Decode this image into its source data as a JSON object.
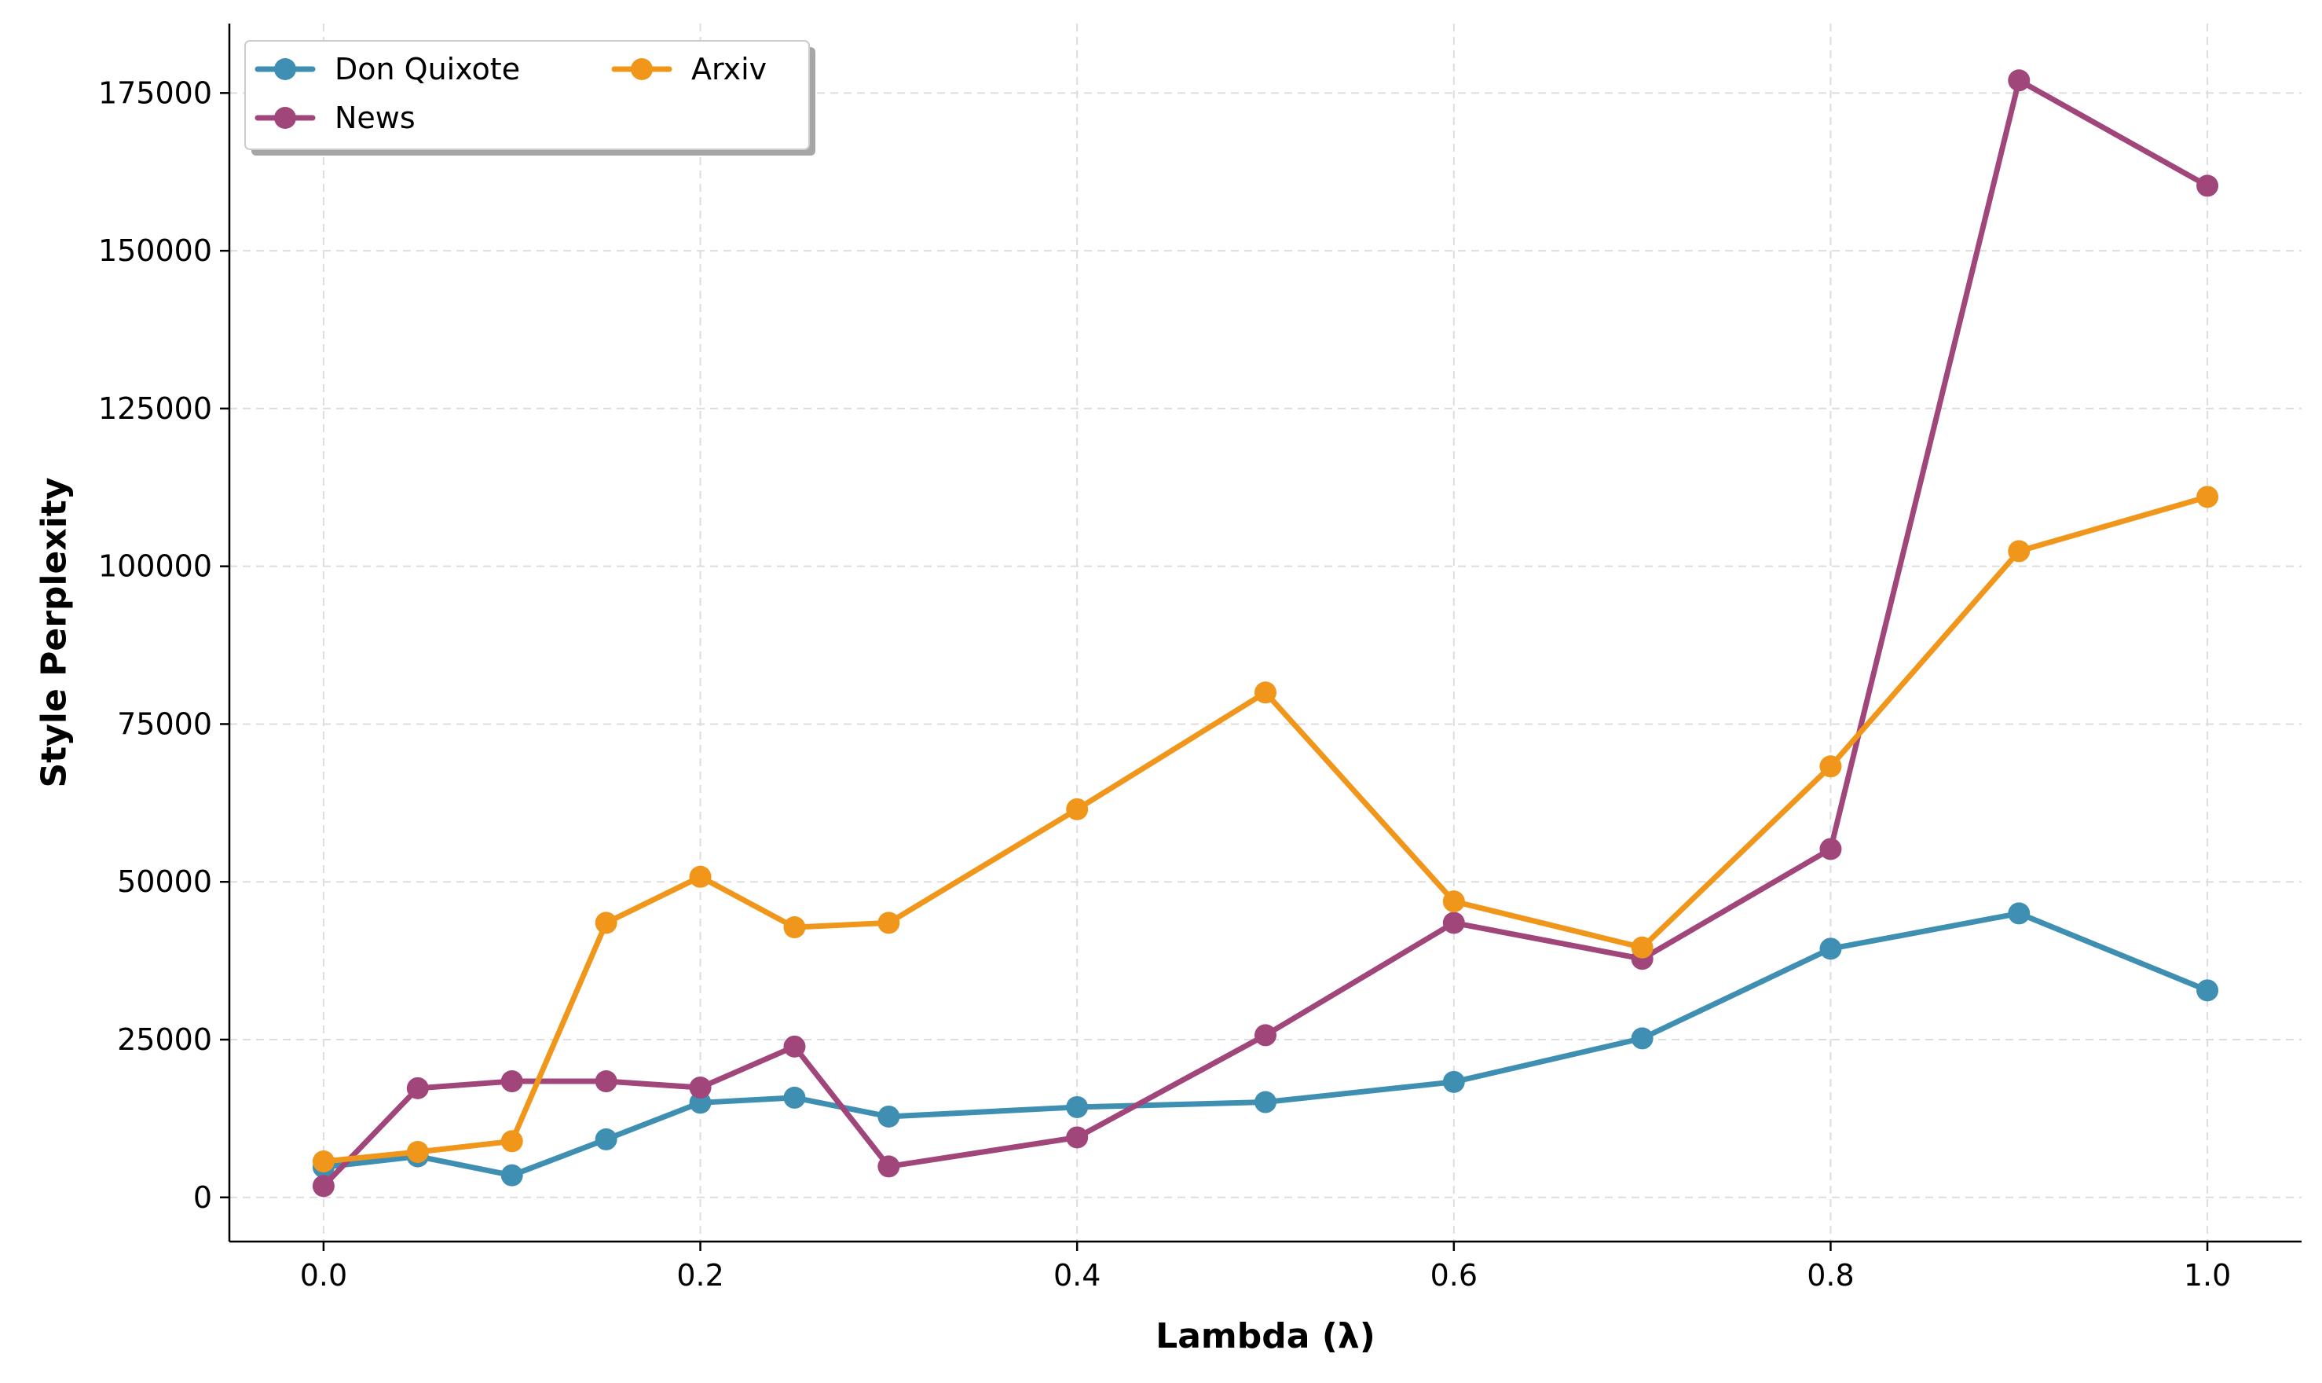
{
  "chart_data": {
    "type": "line",
    "title": "",
    "xlabel": "Lambda (λ)",
    "ylabel": "Style Perplexity",
    "x": [
      0.0,
      0.05,
      0.1,
      0.15,
      0.2,
      0.25,
      0.3,
      0.4,
      0.5,
      0.6,
      0.7,
      0.8,
      0.9,
      1.0
    ],
    "xlim": [
      -0.05,
      1.05
    ],
    "ylim": [
      -7000,
      186000
    ],
    "xticks": [
      0.0,
      0.2,
      0.4,
      0.6,
      0.8,
      1.0
    ],
    "xtick_labels": [
      "0.0",
      "0.2",
      "0.4",
      "0.6",
      "0.8",
      "1.0"
    ],
    "yticks": [
      0,
      25000,
      50000,
      75000,
      100000,
      125000,
      150000,
      175000
    ],
    "ytick_labels": [
      "0",
      "25000",
      "50000",
      "75000",
      "100000",
      "125000",
      "150000",
      "175000"
    ],
    "grid": true,
    "legend_position": "top-left",
    "series": [
      {
        "name": "Don Quixote",
        "color": "#3f8fb2",
        "values": [
          4800,
          6500,
          3500,
          9200,
          15000,
          15800,
          12800,
          14300,
          15100,
          18300,
          25200,
          39400,
          45000,
          32800
        ]
      },
      {
        "name": "News",
        "color": "#a1467a",
        "values": [
          1800,
          17300,
          18400,
          18400,
          17400,
          23900,
          4900,
          9500,
          25700,
          43500,
          37800,
          55200,
          177000,
          160300
        ]
      },
      {
        "name": "Arxiv",
        "color": "#f0961a",
        "values": [
          5700,
          7200,
          8900,
          43500,
          50800,
          42800,
          43500,
          61500,
          80000,
          46900,
          39600,
          68300,
          102400,
          111000
        ]
      }
    ]
  }
}
